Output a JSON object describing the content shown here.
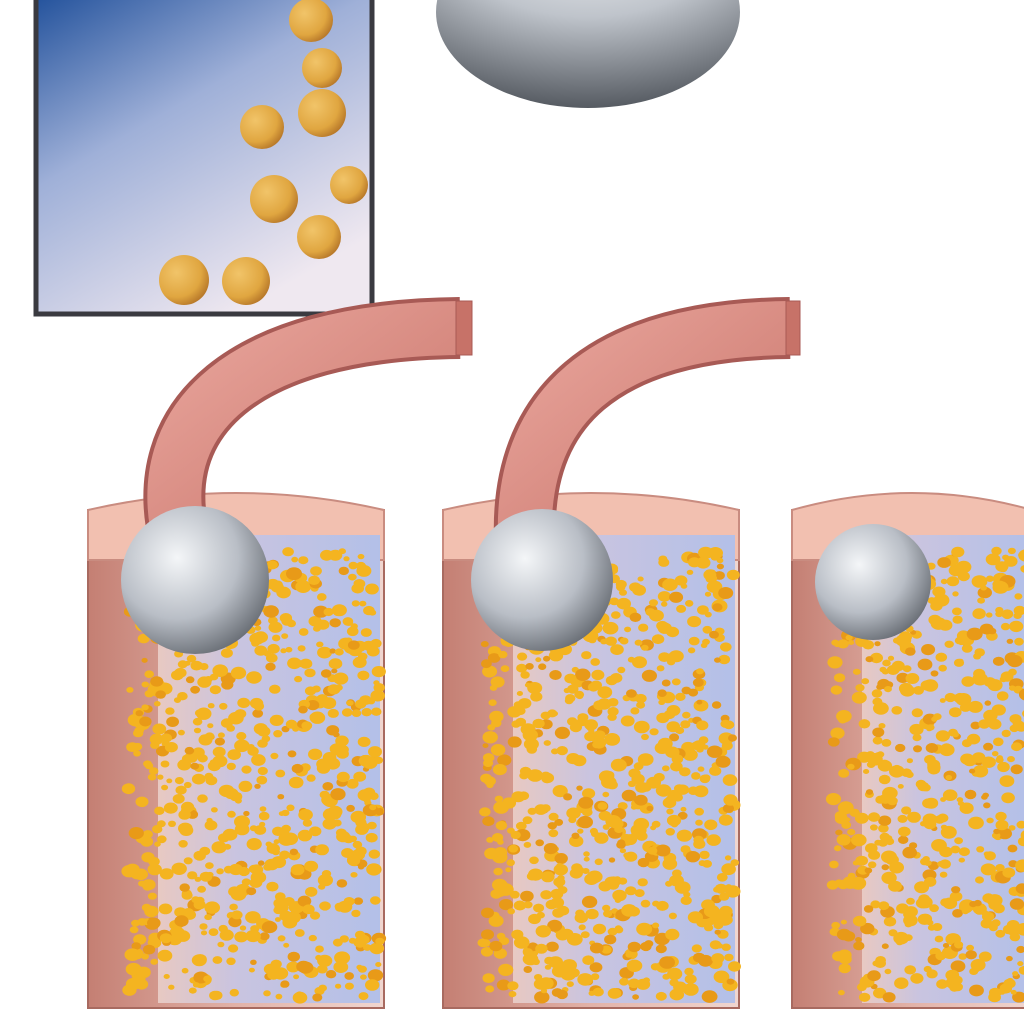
{
  "diagram": {
    "colors": {
      "background": "#ffffff",
      "inset_gradient_top": "#1f4f9a",
      "inset_gradient_bottom": "#efe8f0",
      "inset_border": "#3a3a40",
      "bead": "#e0a640",
      "bead_dark": "#b8792a",
      "tube": "#d98a80",
      "tube_dark": "#a85a55",
      "column_wall": "#c98c80",
      "column_top": "#f2c0b0",
      "column_fill": "#b9c3e6",
      "particle": "#f4b420",
      "sphere_light": "#f4f6f8",
      "sphere_dark": "#5a5f66"
    },
    "elements": {
      "inset_panel": "bead-container",
      "large_sphere": "top-sphere",
      "tubes": [
        "left-tube",
        "middle-tube"
      ],
      "columns": [
        "left-column",
        "middle-column",
        "right-column"
      ],
      "column_spheres": [
        "left-column-sphere",
        "middle-column-sphere",
        "right-column-sphere"
      ]
    }
  }
}
